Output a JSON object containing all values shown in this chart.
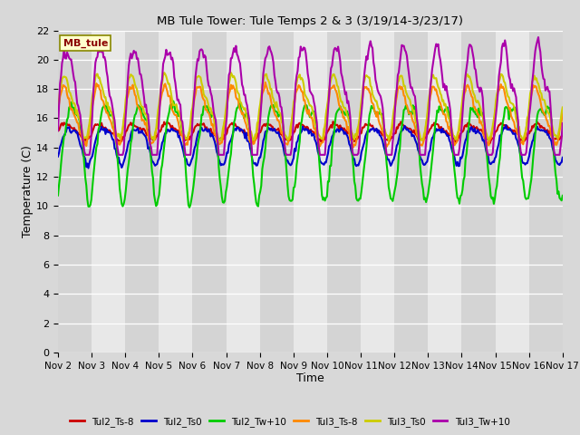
{
  "title": "MB Tule Tower: Tule Temps 2 & 3 (3/19/14-3/23/17)",
  "xlabel": "Time",
  "ylabel": "Temperature (C)",
  "xlim": [
    0,
    15
  ],
  "ylim": [
    0,
    22
  ],
  "yticks": [
    0,
    2,
    4,
    6,
    8,
    10,
    12,
    14,
    16,
    18,
    20,
    22
  ],
  "xtick_labels": [
    "Nov 2",
    "Nov 3",
    "Nov 4",
    "Nov 5",
    "Nov 6",
    "Nov 7",
    "Nov 8",
    "Nov 9",
    "Nov 10",
    "Nov 11",
    "Nov 12",
    "Nov 13",
    "Nov 14",
    "Nov 15",
    "Nov 16",
    "Nov 17"
  ],
  "bg_color": "#d8d8d8",
  "plot_bg_color": "#e8e8e8",
  "band_color": "#d0d0d0",
  "legend_label": "MB_tule",
  "series": {
    "Tul2_Ts-8": {
      "color": "#cc0000",
      "lw": 1.5
    },
    "Tul2_Ts0": {
      "color": "#0000cc",
      "lw": 1.5
    },
    "Tul2_Tw+10": {
      "color": "#00cc00",
      "lw": 1.5
    },
    "Tul3_Ts-8": {
      "color": "#ff8800",
      "lw": 1.5
    },
    "Tul3_Ts0": {
      "color": "#cccc00",
      "lw": 1.5
    },
    "Tul3_Tw+10": {
      "color": "#aa00aa",
      "lw": 1.5
    }
  }
}
